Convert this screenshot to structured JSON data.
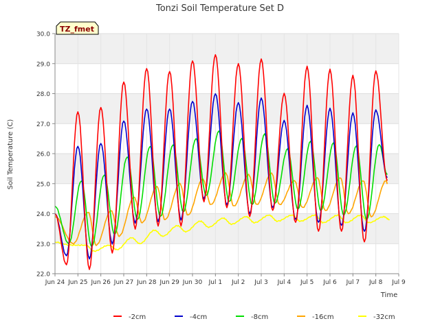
{
  "chart_data": {
    "type": "line",
    "title": "Tonzi Soil Temperature Set D",
    "xlabel": "Time",
    "ylabel": "Soil Temperature (C)",
    "annotation": "TZ_fmet",
    "ylim": [
      22.0,
      30.0
    ],
    "xlim": [
      0,
      15
    ],
    "yticks": [
      "22.0",
      "23.0",
      "24.0",
      "25.0",
      "26.0",
      "27.0",
      "28.0",
      "29.0",
      "30.0"
    ],
    "xticks": [
      "Jun 24",
      "Jun 25",
      "Jun 26",
      "Jun 27",
      "Jun 28",
      "Jun 29",
      "Jun 30",
      "Jul 1",
      "Jul 2",
      "Jul 3",
      "Jul 4",
      "Jul 5",
      "Jul 6",
      "Jul 7",
      "Jul 8",
      "Jul 9"
    ],
    "x_unit": "days since Jun 24 00:00",
    "legend_position": "bottom",
    "grid": true,
    "series": [
      {
        "name": "-2cm",
        "color": "#ff0000",
        "mins": [
          [
            0.5,
            22.3
          ],
          [
            1.5,
            22.15
          ],
          [
            2.5,
            22.7
          ],
          [
            3.5,
            23.5
          ],
          [
            4.5,
            23.6
          ],
          [
            5.5,
            23.6
          ],
          [
            6.5,
            24.4
          ],
          [
            7.5,
            24.2
          ],
          [
            8.5,
            23.9
          ],
          [
            9.5,
            24.1
          ],
          [
            10.5,
            23.7
          ],
          [
            11.5,
            23.4
          ],
          [
            12.5,
            23.4
          ],
          [
            13.5,
            23.05
          ],
          [
            14.5,
            25.1
          ]
        ],
        "maxs": [
          [
            0.0,
            24.0
          ],
          [
            1.0,
            27.4
          ],
          [
            2.0,
            27.55
          ],
          [
            3.0,
            28.4
          ],
          [
            4.0,
            28.85
          ],
          [
            5.0,
            28.75
          ],
          [
            6.0,
            29.1
          ],
          [
            7.0,
            29.3
          ],
          [
            8.0,
            29.0
          ],
          [
            9.0,
            29.15
          ],
          [
            10.0,
            28.0
          ],
          [
            11.0,
            28.9
          ],
          [
            12.0,
            28.8
          ],
          [
            13.0,
            28.6
          ],
          [
            14.0,
            28.75
          ]
        ]
      },
      {
        "name": "-4cm",
        "color": "#0000cc",
        "mins": [
          [
            0.5,
            22.6
          ],
          [
            1.5,
            22.5
          ],
          [
            2.5,
            23.0
          ],
          [
            3.5,
            23.7
          ],
          [
            4.5,
            23.75
          ],
          [
            5.5,
            23.8
          ],
          [
            6.5,
            24.5
          ],
          [
            7.5,
            24.3
          ],
          [
            8.5,
            24.0
          ],
          [
            9.5,
            24.2
          ],
          [
            10.5,
            23.8
          ],
          [
            11.5,
            23.7
          ],
          [
            12.5,
            23.6
          ],
          [
            13.5,
            23.4
          ],
          [
            14.5,
            25.2
          ]
        ],
        "maxs": [
          [
            0.0,
            24.0
          ],
          [
            1.0,
            26.25
          ],
          [
            2.0,
            26.35
          ],
          [
            3.0,
            27.1
          ],
          [
            4.0,
            27.5
          ],
          [
            5.0,
            27.5
          ],
          [
            6.0,
            27.75
          ],
          [
            7.0,
            28.0
          ],
          [
            8.0,
            27.7
          ],
          [
            9.0,
            27.85
          ],
          [
            10.0,
            27.1
          ],
          [
            11.0,
            27.6
          ],
          [
            12.0,
            27.5
          ],
          [
            13.0,
            27.35
          ],
          [
            14.0,
            27.45
          ]
        ]
      },
      {
        "name": "-8cm",
        "color": "#00dd00",
        "mins": [
          [
            0.6,
            23.0
          ],
          [
            1.6,
            22.9
          ],
          [
            2.6,
            23.3
          ],
          [
            3.6,
            23.8
          ],
          [
            4.6,
            23.9
          ],
          [
            5.6,
            24.05
          ],
          [
            6.6,
            24.6
          ],
          [
            7.6,
            24.4
          ],
          [
            8.6,
            24.3
          ],
          [
            9.6,
            24.35
          ],
          [
            10.6,
            24.15
          ],
          [
            11.6,
            24.1
          ],
          [
            12.6,
            23.95
          ],
          [
            13.6,
            23.8
          ],
          [
            14.5,
            25.3
          ]
        ],
        "maxs": [
          [
            0.0,
            24.25
          ],
          [
            1.15,
            25.1
          ],
          [
            2.15,
            25.3
          ],
          [
            3.15,
            25.9
          ],
          [
            4.15,
            26.25
          ],
          [
            5.15,
            26.3
          ],
          [
            6.15,
            26.5
          ],
          [
            7.15,
            26.75
          ],
          [
            8.15,
            26.5
          ],
          [
            9.15,
            26.65
          ],
          [
            10.15,
            26.15
          ],
          [
            11.15,
            26.4
          ],
          [
            12.15,
            26.35
          ],
          [
            13.15,
            26.25
          ],
          [
            14.15,
            26.3
          ]
        ]
      },
      {
        "name": "-16cm",
        "color": "#ffa500",
        "mins": [
          [
            0.8,
            23.0
          ],
          [
            1.8,
            22.95
          ],
          [
            2.8,
            23.25
          ],
          [
            3.8,
            23.7
          ],
          [
            4.8,
            23.8
          ],
          [
            5.8,
            23.95
          ],
          [
            6.8,
            24.3
          ],
          [
            7.8,
            24.25
          ],
          [
            8.8,
            24.3
          ],
          [
            9.8,
            24.3
          ],
          [
            10.8,
            24.2
          ],
          [
            11.8,
            24.1
          ],
          [
            12.8,
            24.0
          ],
          [
            13.8,
            23.9
          ],
          [
            14.5,
            25.0
          ]
        ],
        "maxs": [
          [
            0.0,
            23.9
          ],
          [
            1.45,
            24.05
          ],
          [
            2.45,
            24.1
          ],
          [
            3.45,
            24.55
          ],
          [
            4.45,
            24.9
          ],
          [
            5.45,
            25.0
          ],
          [
            6.45,
            25.15
          ],
          [
            7.45,
            25.35
          ],
          [
            8.45,
            25.3
          ],
          [
            9.45,
            25.35
          ],
          [
            10.45,
            25.1
          ],
          [
            11.45,
            25.2
          ],
          [
            12.45,
            25.2
          ],
          [
            13.45,
            25.1
          ],
          [
            14.45,
            25.1
          ]
        ]
      },
      {
        "name": "-32cm",
        "color": "#ffff00",
        "mins": [
          [
            0.7,
            22.95
          ],
          [
            1.7,
            22.75
          ],
          [
            2.7,
            22.8
          ],
          [
            3.7,
            23.0
          ],
          [
            4.7,
            23.25
          ],
          [
            5.7,
            23.4
          ],
          [
            6.7,
            23.55
          ],
          [
            7.7,
            23.65
          ],
          [
            8.7,
            23.7
          ],
          [
            9.7,
            23.75
          ],
          [
            10.7,
            23.75
          ],
          [
            11.7,
            23.7
          ],
          [
            12.7,
            23.7
          ],
          [
            13.7,
            23.7
          ],
          [
            14.6,
            23.8
          ]
        ],
        "maxs": [
          [
            0.0,
            23.05
          ],
          [
            1.35,
            22.95
          ],
          [
            2.35,
            22.95
          ],
          [
            3.35,
            23.2
          ],
          [
            4.35,
            23.45
          ],
          [
            5.35,
            23.6
          ],
          [
            6.35,
            23.75
          ],
          [
            7.35,
            23.85
          ],
          [
            8.35,
            23.9
          ],
          [
            9.35,
            23.95
          ],
          [
            10.35,
            23.95
          ],
          [
            11.35,
            23.95
          ],
          [
            12.35,
            23.95
          ],
          [
            13.35,
            23.95
          ],
          [
            14.35,
            23.9
          ]
        ]
      }
    ]
  }
}
